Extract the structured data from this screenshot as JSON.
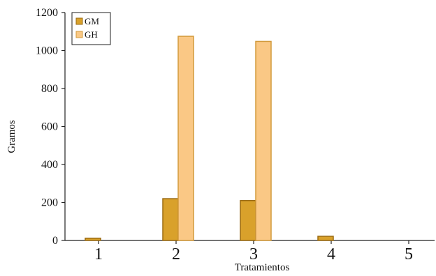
{
  "chart_data": {
    "type": "bar",
    "title": "",
    "xlabel": "Tratamientos",
    "ylabel": "Gramos",
    "categories": [
      "1",
      "2",
      "3",
      "4",
      "5"
    ],
    "ylim": [
      0,
      1200
    ],
    "yticks": [
      "0",
      "200",
      "400",
      "600",
      "800",
      "1000",
      "1200"
    ],
    "grid": false,
    "legend_position": "top-left",
    "series": [
      {
        "name": "GM",
        "color": "#D9A12B",
        "edge": "#9A6A12",
        "values": [
          12,
          220,
          210,
          22,
          0
        ]
      },
      {
        "name": "GH",
        "color": "#FAC885",
        "edge": "#D29A3C",
        "values": [
          0,
          1075,
          1048,
          0,
          0
        ]
      }
    ]
  }
}
